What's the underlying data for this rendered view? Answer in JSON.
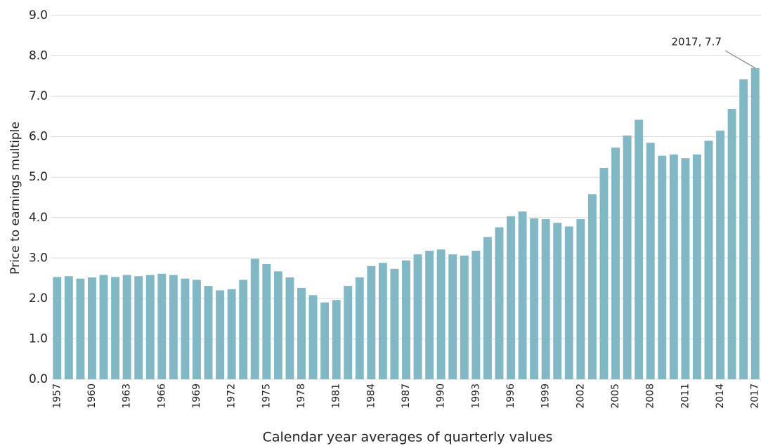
{
  "chart_data": {
    "type": "bar",
    "y_label": "Price to earnings multiple",
    "x_label": "Calendar year averages of quarterly values",
    "annotation": "2017, 7.7",
    "annotation_index": 60,
    "color": "#80b9c5",
    "grid": true,
    "categories": [
      "1957",
      null,
      null,
      "1960",
      null,
      null,
      "1963",
      null,
      null,
      "1966",
      null,
      null,
      "1969",
      null,
      null,
      "1972",
      null,
      null,
      "1975",
      null,
      null,
      "1978",
      null,
      null,
      "1981",
      null,
      null,
      "1984",
      null,
      null,
      "1987",
      null,
      null,
      "1990",
      null,
      null,
      "1993",
      null,
      null,
      "1996",
      null,
      null,
      "1999",
      null,
      null,
      "2002",
      null,
      null,
      "2005",
      null,
      null,
      "2008",
      null,
      null,
      "2011",
      null,
      null,
      "2014",
      null,
      null,
      "2017"
    ],
    "values": [
      2.53,
      2.55,
      2.49,
      2.52,
      2.58,
      2.53,
      2.58,
      2.55,
      2.58,
      2.61,
      2.58,
      2.49,
      2.46,
      2.31,
      2.2,
      2.23,
      2.46,
      2.98,
      2.85,
      2.67,
      2.52,
      2.26,
      2.08,
      1.9,
      1.96,
      2.31,
      2.52,
      2.8,
      2.88,
      2.73,
      2.94,
      3.09,
      3.18,
      3.21,
      3.09,
      3.06,
      3.18,
      3.52,
      3.76,
      4.03,
      4.15,
      3.98,
      3.96,
      3.87,
      3.78,
      3.96,
      4.58,
      5.23,
      5.73,
      6.03,
      6.42,
      5.85,
      5.53,
      5.56,
      5.47,
      5.56,
      5.9,
      6.15,
      6.69,
      7.42,
      7.7
    ],
    "ylim": [
      0,
      9
    ],
    "yticks": [
      {
        "value": 0,
        "label": "0.0"
      },
      {
        "value": 1,
        "label": "1.0"
      },
      {
        "value": 2,
        "label": "2.0"
      },
      {
        "value": 3,
        "label": "3.0"
      },
      {
        "value": 4,
        "label": "4.0"
      },
      {
        "value": 5,
        "label": "5.0"
      },
      {
        "value": 6,
        "label": "6.0"
      },
      {
        "value": 7,
        "label": "7.0"
      },
      {
        "value": 8,
        "label": "8.0"
      },
      {
        "value": 9,
        "label": "9.0"
      }
    ]
  }
}
